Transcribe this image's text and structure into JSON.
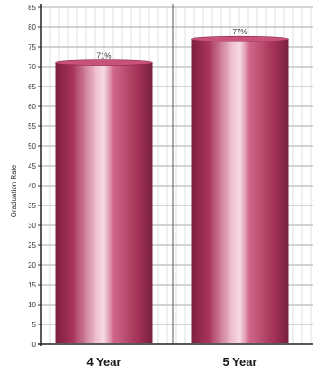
{
  "chart_data": {
    "type": "bar",
    "categories": [
      "4 Year",
      "5 Year"
    ],
    "values": [
      71,
      77
    ],
    "data_labels": [
      "71%",
      "77%"
    ],
    "ylabel": "Graduation Rate",
    "ylim": [
      0,
      85
    ],
    "yticks": [
      0,
      5,
      10,
      15,
      20,
      25,
      30,
      35,
      40,
      45,
      50,
      55,
      60,
      65,
      70,
      75,
      80,
      85
    ],
    "grid": true,
    "bar_color": "#b4395f",
    "bar_highlight": "#f3c4d2"
  }
}
